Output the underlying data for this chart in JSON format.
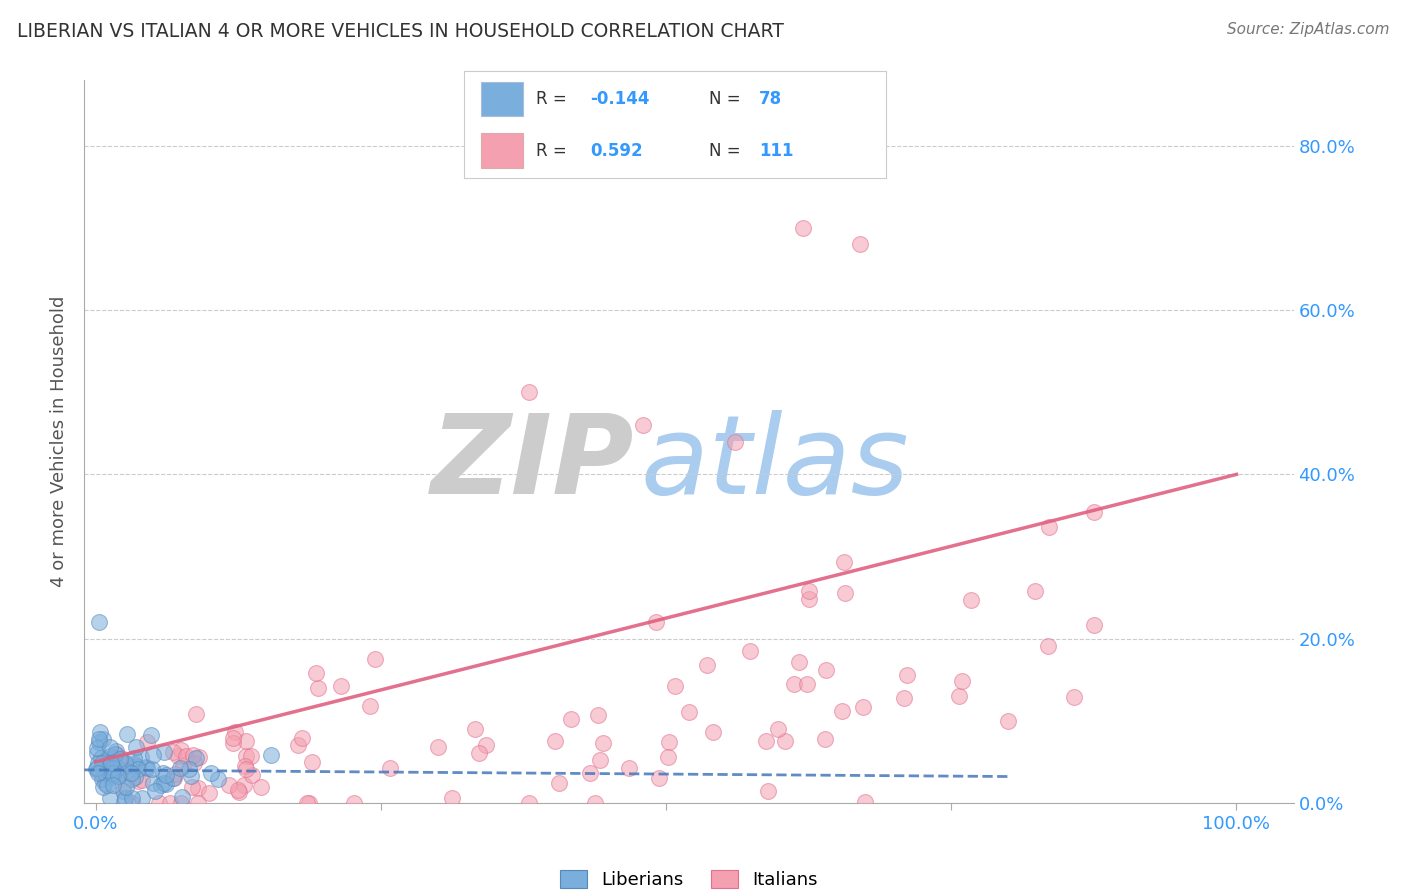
{
  "title": "LIBERIAN VS ITALIAN 4 OR MORE VEHICLES IN HOUSEHOLD CORRELATION CHART",
  "source": "Source: ZipAtlas.com",
  "ylabel": "4 or more Vehicles in Household",
  "liberian_R": -0.144,
  "liberian_N": 78,
  "italian_R": 0.592,
  "italian_N": 111,
  "liberian_color": "#7AAEDC",
  "liberian_edge_color": "#5588BB",
  "italian_color": "#F4A0B0",
  "italian_edge_color": "#E07090",
  "liberian_line_color": "#4477BB",
  "italian_line_color": "#E06080",
  "background_color": "#FFFFFF",
  "grid_color": "#CCCCCC",
  "title_color": "#333333",
  "axis_label_color": "#3399FF",
  "legend_text_color": "#333333",
  "watermark_zip_color": "#CCCCCC",
  "watermark_atlas_color": "#AACCEE",
  "ylim": [
    0.0,
    0.88
  ],
  "xlim": [
    -0.01,
    1.05
  ],
  "yticks": [
    0.0,
    0.2,
    0.4,
    0.6,
    0.8
  ],
  "ytick_labels": [
    "0.0%",
    "20.0%",
    "40.0%",
    "60.0%",
    "80.0%"
  ],
  "xticks": [
    0.0,
    0.25,
    0.5,
    0.75,
    1.0
  ],
  "xtick_labels": [
    "0.0%",
    "",
    "",
    "",
    "100.0%"
  ]
}
